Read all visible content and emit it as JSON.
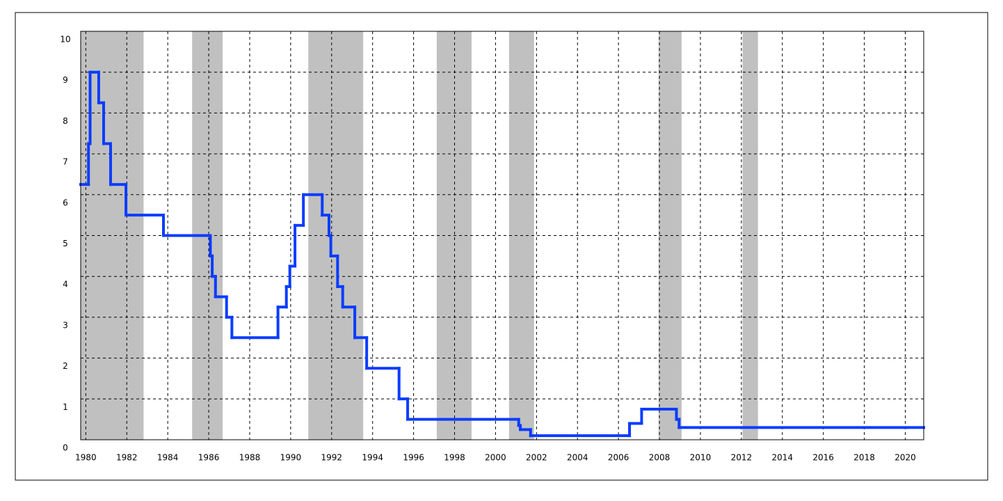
{
  "chart_data": {
    "type": "step",
    "xlim": [
      1979.75,
      2020.9
    ],
    "ylim": [
      0,
      10
    ],
    "xticks": [
      1980,
      1982,
      1984,
      1986,
      1988,
      1990,
      1992,
      1994,
      1996,
      1998,
      2000,
      2002,
      2004,
      2006,
      2008,
      2010,
      2012,
      2014,
      2016,
      2018,
      2020
    ],
    "yticks": [
      0,
      1,
      2,
      3,
      4,
      5,
      6,
      7,
      8,
      9,
      10
    ],
    "grid": true,
    "band_color": "#c0c0c0",
    "bands": [
      [
        1979.75,
        1982.82
      ],
      [
        1985.19,
        1986.68
      ],
      [
        1990.86,
        1993.54
      ],
      [
        1997.13,
        1998.83
      ],
      [
        2000.66,
        2001.88
      ],
      [
        2007.96,
        2009.08
      ],
      [
        2012.06,
        2012.81
      ]
    ],
    "series": [
      {
        "color": "#0a3cff",
        "x": [
          1979.75,
          1980.13,
          1980.21,
          1980.63,
          1980.87,
          1981.21,
          1981.96,
          1983.79,
          1986.08,
          1986.17,
          1986.33,
          1986.87,
          1987.13,
          1989.38,
          1989.79,
          1989.96,
          1990.21,
          1990.62,
          1991.54,
          1991.87,
          1991.96,
          1992.29,
          1992.54,
          1993.13,
          1993.71,
          1995.29,
          1995.71,
          2001.13,
          2001.21,
          2001.71,
          2006.54,
          2007.13,
          2008.83,
          2008.96
        ],
        "values": [
          6.25,
          7.25,
          9.0,
          8.25,
          7.25,
          6.25,
          5.5,
          5.0,
          4.5,
          4.0,
          3.5,
          3.0,
          2.5,
          3.25,
          3.75,
          4.25,
          5.25,
          6.0,
          5.5,
          5.0,
          4.5,
          3.75,
          3.25,
          2.5,
          1.75,
          1.0,
          0.5,
          0.35,
          0.25,
          0.1,
          0.4,
          0.75,
          0.5,
          0.3
        ]
      }
    ]
  }
}
